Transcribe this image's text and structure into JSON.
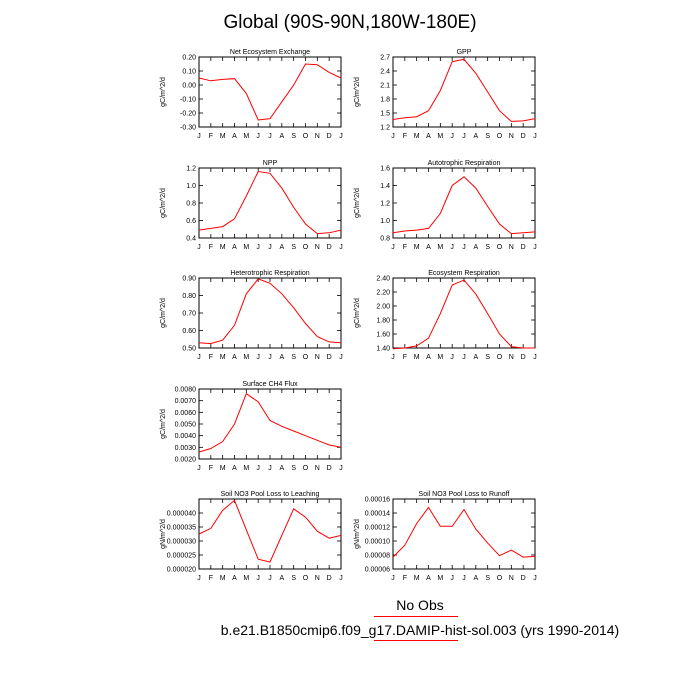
{
  "title": "Global (90S-90N,180W-180E)",
  "months": [
    "J",
    "F",
    "M",
    "A",
    "M",
    "J",
    "J",
    "A",
    "S",
    "O",
    "N",
    "D",
    "J"
  ],
  "line_color": "#ff0000",
  "legend": {
    "title": "No Obs",
    "case_label": "b.e21.B1850cmip6.f09_g17.DAMIP-hist-sol.003 (yrs 1990-2014)"
  },
  "chart_data": [
    {
      "type": "line",
      "title": "Net Ecosystem Exchange",
      "ylabel": "gC/m^2/d",
      "ylim": [
        -0.3,
        0.2
      ],
      "yticks": [
        0.2,
        0.1,
        0.0,
        -0.1,
        -0.2,
        -0.3
      ],
      "ytick_labels": [
        "0.20",
        "0.10",
        "0.00",
        "-0.10",
        "-0.20",
        "-0.30"
      ],
      "values": [
        0.05,
        0.03,
        0.04,
        0.045,
        -0.06,
        -0.25,
        -0.24,
        -0.12,
        0.0,
        0.15,
        0.145,
        0.09,
        0.05
      ]
    },
    {
      "type": "line",
      "title": "GPP",
      "ylabel": "gC/m^2/d",
      "ylim": [
        1.2,
        2.7
      ],
      "yticks": [
        2.7,
        2.4,
        2.1,
        1.8,
        1.5,
        1.2
      ],
      "ytick_labels": [
        "2.7",
        "2.4",
        "2.1",
        "1.8",
        "1.5",
        "1.2"
      ],
      "values": [
        1.36,
        1.4,
        1.42,
        1.55,
        1.98,
        2.6,
        2.65,
        2.35,
        1.95,
        1.55,
        1.32,
        1.33,
        1.38
      ]
    },
    {
      "type": "line",
      "title": "NPP",
      "ylabel": "gC/m^2/d",
      "ylim": [
        0.4,
        1.2
      ],
      "yticks": [
        1.2,
        1.0,
        0.8,
        0.6,
        0.4
      ],
      "ytick_labels": [
        "1.2",
        "1.0",
        "0.8",
        "0.6",
        "0.4"
      ],
      "values": [
        0.49,
        0.51,
        0.53,
        0.62,
        0.88,
        1.16,
        1.14,
        0.97,
        0.75,
        0.56,
        0.45,
        0.46,
        0.49
      ]
    },
    {
      "type": "line",
      "title": "Autotrophic Respiration",
      "ylabel": "gC/m^2/d",
      "ylim": [
        0.8,
        1.6
      ],
      "yticks": [
        1.6,
        1.4,
        1.2,
        1.0,
        0.8
      ],
      "ytick_labels": [
        "1.6",
        "1.4",
        "1.2",
        "1.0",
        "0.8"
      ],
      "values": [
        0.86,
        0.88,
        0.89,
        0.91,
        1.08,
        1.4,
        1.5,
        1.37,
        1.16,
        0.96,
        0.85,
        0.86,
        0.87
      ]
    },
    {
      "type": "line",
      "title": "Heterotrophic Respiration",
      "ylabel": "gC/m^2/d",
      "ylim": [
        0.5,
        0.9
      ],
      "yticks": [
        0.9,
        0.8,
        0.7,
        0.6,
        0.5
      ],
      "ytick_labels": [
        "0.90",
        "0.80",
        "0.70",
        "0.60",
        "0.50"
      ],
      "values": [
        0.53,
        0.525,
        0.545,
        0.63,
        0.81,
        0.895,
        0.87,
        0.81,
        0.73,
        0.64,
        0.565,
        0.535,
        0.53
      ]
    },
    {
      "type": "line",
      "title": "Ecosystem Respiration",
      "ylabel": "gC/m^2/d",
      "ylim": [
        1.4,
        2.4
      ],
      "yticks": [
        2.4,
        2.2,
        2.0,
        1.8,
        1.6,
        1.4
      ],
      "ytick_labels": [
        "2.40",
        "2.20",
        "2.00",
        "1.80",
        "1.60",
        "1.40"
      ],
      "values": [
        1.39,
        1.4,
        1.43,
        1.54,
        1.89,
        2.3,
        2.37,
        2.17,
        1.89,
        1.6,
        1.42,
        1.4,
        1.4
      ]
    },
    {
      "type": "line",
      "title": "Surface CH4 Flux",
      "ylabel": "gC/m^2/d",
      "ylim": [
        0.002,
        0.008
      ],
      "yticks": [
        0.008,
        0.007,
        0.006,
        0.005,
        0.004,
        0.003,
        0.002
      ],
      "ytick_labels": [
        "0.0080",
        "0.0070",
        "0.0060",
        "0.0050",
        "0.0040",
        "0.0030",
        "0.0020"
      ],
      "values": [
        0.0026,
        0.0029,
        0.0035,
        0.005,
        0.0076,
        0.0069,
        0.0053,
        0.0048,
        0.0044,
        0.004,
        0.0036,
        0.0032,
        0.003
      ]
    },
    {
      "type": "line",
      "title": "Soil NO3 Pool Loss to Leaching",
      "ylabel": "gN/m^2/d",
      "ylim": [
        2e-05,
        4.5e-05
      ],
      "yticks": [
        4e-05,
        3.5e-05,
        3e-05,
        2.5e-05,
        2e-05
      ],
      "ytick_labels": [
        "0.000040",
        "0.000035",
        "0.000030",
        "0.000025",
        "0.000020"
      ],
      "values": [
        3.25e-05,
        3.45e-05,
        4.1e-05,
        4.45e-05,
        3.4e-05,
        2.35e-05,
        2.25e-05,
        3.2e-05,
        4.15e-05,
        3.85e-05,
        3.35e-05,
        3.1e-05,
        3.2e-05
      ]
    },
    {
      "type": "line",
      "title": "Soil NO3 Pool Loss to Runoff",
      "ylabel": "gN/m^2/d",
      "ylim": [
        6e-05,
        0.00016
      ],
      "yticks": [
        0.00016,
        0.00014,
        0.00012,
        0.0001,
        8e-05,
        6e-05
      ],
      "ytick_labels": [
        "0.00016",
        "0.00014",
        "0.00012",
        "0.00010",
        "0.00008",
        "0.00006"
      ],
      "values": [
        7.7e-05,
        9.4e-05,
        0.000125,
        0.000148,
        0.000121,
        0.000121,
        0.000145,
        0.000117,
        9.7e-05,
        7.9e-05,
        8.7e-05,
        7.7e-05,
        7.8e-05
      ]
    }
  ]
}
